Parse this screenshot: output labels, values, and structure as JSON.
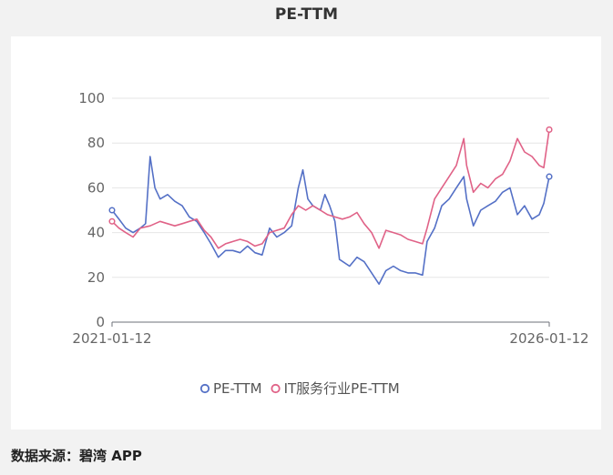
{
  "title": "PE-TTM",
  "footer": "数据来源：碧湾 APP",
  "chart_data": {
    "type": "line",
    "title": "PE-TTM",
    "xlabel": "",
    "ylabel": "",
    "x_range": [
      "2021-01-12",
      "2026-01-12"
    ],
    "x_tick_labels": [
      "2021-01-12",
      "2026-01-12"
    ],
    "ylim": [
      0,
      100
    ],
    "y_ticks": [
      0,
      20,
      40,
      60,
      80,
      100
    ],
    "grid": true,
    "legend_position": "bottom",
    "series": [
      {
        "name": "PE-TTM",
        "color": "#5470c6",
        "points": [
          [
            "2021-01-12",
            50
          ],
          [
            "2021-02-10",
            46
          ],
          [
            "2021-03-10",
            42
          ],
          [
            "2021-04-10",
            40
          ],
          [
            "2021-05-10",
            42
          ],
          [
            "2021-06-01",
            44
          ],
          [
            "2021-06-20",
            74
          ],
          [
            "2021-07-10",
            60
          ],
          [
            "2021-08-01",
            55
          ],
          [
            "2021-09-01",
            57
          ],
          [
            "2021-10-01",
            54
          ],
          [
            "2021-11-01",
            52
          ],
          [
            "2021-12-01",
            47
          ],
          [
            "2022-01-01",
            45
          ],
          [
            "2022-02-01",
            40
          ],
          [
            "2022-03-01",
            35
          ],
          [
            "2022-04-01",
            29
          ],
          [
            "2022-05-01",
            32
          ],
          [
            "2022-06-01",
            32
          ],
          [
            "2022-07-01",
            31
          ],
          [
            "2022-08-01",
            34
          ],
          [
            "2022-09-01",
            31
          ],
          [
            "2022-10-01",
            30
          ],
          [
            "2022-11-01",
            42
          ],
          [
            "2022-12-01",
            38
          ],
          [
            "2023-01-01",
            40
          ],
          [
            "2023-02-01",
            43
          ],
          [
            "2023-03-01",
            60
          ],
          [
            "2023-03-20",
            68
          ],
          [
            "2023-04-10",
            55
          ],
          [
            "2023-05-01",
            52
          ],
          [
            "2023-06-01",
            50
          ],
          [
            "2023-06-20",
            57
          ],
          [
            "2023-07-10",
            52
          ],
          [
            "2023-08-01",
            45
          ],
          [
            "2023-08-20",
            28
          ],
          [
            "2023-10-01",
            25
          ],
          [
            "2023-11-01",
            29
          ],
          [
            "2023-12-01",
            27
          ],
          [
            "2024-01-01",
            22
          ],
          [
            "2024-02-01",
            17
          ],
          [
            "2024-03-01",
            23
          ],
          [
            "2024-04-01",
            25
          ],
          [
            "2024-05-01",
            23
          ],
          [
            "2024-06-01",
            22
          ],
          [
            "2024-07-01",
            22
          ],
          [
            "2024-08-01",
            21
          ],
          [
            "2024-08-20",
            36
          ],
          [
            "2024-09-20",
            42
          ],
          [
            "2024-10-20",
            52
          ],
          [
            "2024-11-20",
            55
          ],
          [
            "2024-12-20",
            60
          ],
          [
            "2025-01-20",
            65
          ],
          [
            "2025-02-01",
            55
          ],
          [
            "2025-03-01",
            43
          ],
          [
            "2025-04-01",
            50
          ],
          [
            "2025-05-01",
            52
          ],
          [
            "2025-06-01",
            54
          ],
          [
            "2025-07-01",
            58
          ],
          [
            "2025-08-01",
            60
          ],
          [
            "2025-09-01",
            48
          ],
          [
            "2025-10-01",
            52
          ],
          [
            "2025-11-01",
            46
          ],
          [
            "2025-12-01",
            48
          ],
          [
            "2025-12-20",
            53
          ],
          [
            "2026-01-12",
            65
          ]
        ]
      },
      {
        "name": "IT服务行业PE-TTM",
        "color": "#e06287",
        "points": [
          [
            "2021-01-12",
            45
          ],
          [
            "2021-02-10",
            42
          ],
          [
            "2021-03-10",
            40
          ],
          [
            "2021-04-10",
            38
          ],
          [
            "2021-05-10",
            42
          ],
          [
            "2021-06-20",
            43
          ],
          [
            "2021-08-01",
            45
          ],
          [
            "2021-09-01",
            44
          ],
          [
            "2021-10-01",
            43
          ],
          [
            "2021-11-01",
            44
          ],
          [
            "2021-12-01",
            45
          ],
          [
            "2022-01-01",
            46
          ],
          [
            "2022-02-01",
            41
          ],
          [
            "2022-03-01",
            38
          ],
          [
            "2022-04-01",
            33
          ],
          [
            "2022-05-01",
            35
          ],
          [
            "2022-06-01",
            36
          ],
          [
            "2022-07-01",
            37
          ],
          [
            "2022-08-01",
            36
          ],
          [
            "2022-09-01",
            34
          ],
          [
            "2022-10-01",
            35
          ],
          [
            "2022-11-01",
            40
          ],
          [
            "2022-12-01",
            41
          ],
          [
            "2023-01-01",
            42
          ],
          [
            "2023-02-01",
            48
          ],
          [
            "2023-03-01",
            52
          ],
          [
            "2023-04-01",
            50
          ],
          [
            "2023-05-01",
            52
          ],
          [
            "2023-06-01",
            50
          ],
          [
            "2023-07-01",
            48
          ],
          [
            "2023-08-01",
            47
          ],
          [
            "2023-09-01",
            46
          ],
          [
            "2023-10-01",
            47
          ],
          [
            "2023-11-01",
            49
          ],
          [
            "2023-12-01",
            44
          ],
          [
            "2024-01-01",
            40
          ],
          [
            "2024-02-01",
            33
          ],
          [
            "2024-03-01",
            41
          ],
          [
            "2024-04-01",
            40
          ],
          [
            "2024-05-01",
            39
          ],
          [
            "2024-06-01",
            37
          ],
          [
            "2024-07-01",
            36
          ],
          [
            "2024-08-01",
            35
          ],
          [
            "2024-08-20",
            42
          ],
          [
            "2024-09-20",
            55
          ],
          [
            "2024-10-20",
            60
          ],
          [
            "2024-11-20",
            65
          ],
          [
            "2024-12-20",
            70
          ],
          [
            "2025-01-20",
            82
          ],
          [
            "2025-02-01",
            70
          ],
          [
            "2025-03-01",
            58
          ],
          [
            "2025-04-01",
            62
          ],
          [
            "2025-05-01",
            60
          ],
          [
            "2025-06-01",
            64
          ],
          [
            "2025-07-01",
            66
          ],
          [
            "2025-08-01",
            72
          ],
          [
            "2025-09-01",
            82
          ],
          [
            "2025-10-01",
            76
          ],
          [
            "2025-11-01",
            74
          ],
          [
            "2025-12-01",
            70
          ],
          [
            "2025-12-20",
            69
          ],
          [
            "2026-01-12",
            86
          ]
        ]
      }
    ]
  }
}
